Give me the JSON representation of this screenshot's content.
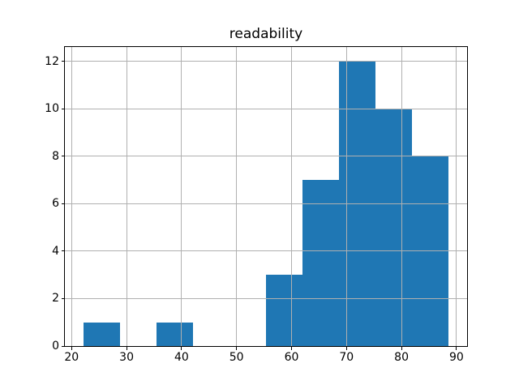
{
  "chart_data": {
    "type": "bar",
    "subtype": "histogram",
    "title": "readability",
    "xlabel": "",
    "ylabel": "",
    "bin_edges": [
      22.1,
      28.75,
      35.4,
      42.05,
      48.7,
      55.35,
      62.0,
      68.65,
      75.3,
      81.95,
      88.6
    ],
    "counts": [
      1,
      0,
      1,
      0,
      0,
      3,
      7,
      12,
      10,
      8
    ],
    "x_ticks": [
      20,
      30,
      40,
      50,
      60,
      70,
      80,
      90
    ],
    "y_ticks": [
      0,
      2,
      4,
      6,
      8,
      10,
      12
    ],
    "xlim": [
      18.78,
      91.93
    ],
    "ylim": [
      0,
      12.6
    ],
    "grid": true,
    "legend": "none",
    "bar_color": "#1f77b4",
    "grid_color": "#b0b0b0",
    "axis_color": "#000000",
    "background_color": "#ffffff"
  }
}
